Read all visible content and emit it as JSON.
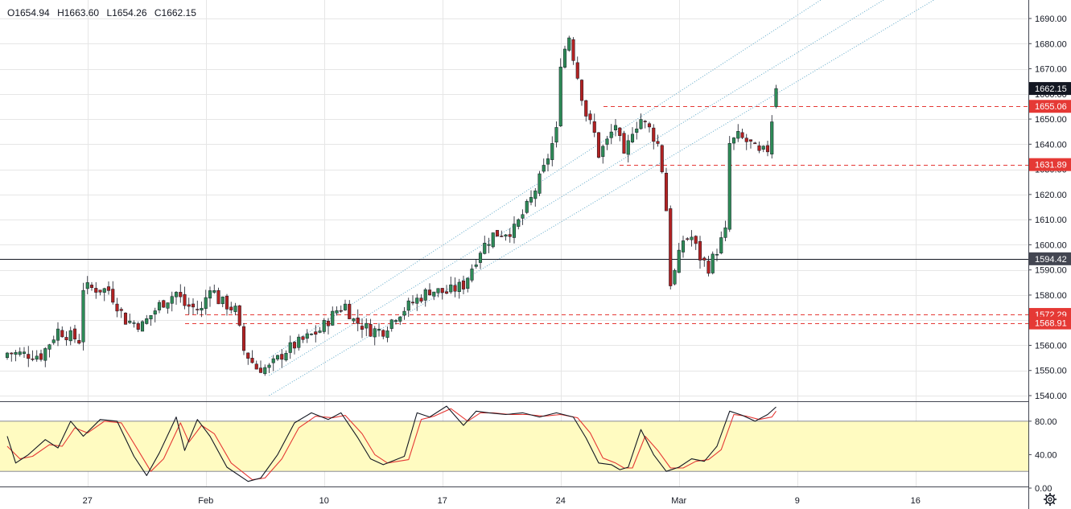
{
  "ohlc": {
    "open": "O1654.94",
    "high": "H1663.60",
    "low": "L1654.26",
    "close": "C1662.15"
  },
  "colors": {
    "up": "#26a69a",
    "up_fill": "#2e8b57",
    "down": "#ef5350",
    "down_fill": "#b22222",
    "level": "#e53935",
    "k_line": "#131722",
    "d_line": "#e53935",
    "band": "#fffbc1",
    "channel": "#5fa8c8",
    "grid": "#e6e6e6"
  },
  "chart_data": [
    {
      "type": "candlestick",
      "ylim": [
        1535,
        1695
      ],
      "yticks": [
        "1540.00",
        "1550.00",
        "1560.00",
        "1570.00",
        "1580.00",
        "1590.00",
        "1600.00",
        "1610.00",
        "1620.00",
        "1630.00",
        "1640.00",
        "1650.00",
        "1660.00",
        "1670.00",
        "1680.00",
        "1690.00"
      ],
      "xticks": [
        {
          "label": "27",
          "index": 19
        },
        {
          "label": "Feb",
          "index": 47
        },
        {
          "label": "10",
          "index": 75
        },
        {
          "label": "17",
          "index": 103
        },
        {
          "label": "24",
          "index": 131
        },
        {
          "label": "Mar",
          "index": 159
        },
        {
          "label": "9",
          "index": 187
        },
        {
          "label": "16",
          "index": 215
        }
      ],
      "price_levels": [
        {
          "label": "1662.15",
          "value": 1662.15,
          "style": "last",
          "color": "#131722"
        },
        {
          "label": "1655.06",
          "value": 1655.06,
          "style": "dashed",
          "color": "#e53935"
        },
        {
          "label": "1631.89",
          "value": 1631.89,
          "style": "dashed",
          "color": "#e53935"
        },
        {
          "label": "1594.42",
          "value": 1594.42,
          "style": "solid",
          "color": "#131722"
        },
        {
          "label": "1572.29",
          "value": 1572.29,
          "style": "dashed",
          "color": "#e53935"
        },
        {
          "label": "1568.91",
          "value": 1568.91,
          "style": "dashed",
          "color": "#e53935"
        }
      ],
      "channel_lines": [
        {
          "from": [
            62,
            1555
          ],
          "to": [
            195,
            1700
          ]
        },
        {
          "from": [
            62,
            1548
          ],
          "to": [
            210,
            1700
          ]
        },
        {
          "from": [
            62,
            1540
          ],
          "to": [
            222,
            1700
          ]
        }
      ],
      "close_path": [
        [
          0,
          1557
        ],
        [
          8,
          1556
        ],
        [
          12,
          1566
        ],
        [
          17,
          1562
        ],
        [
          18,
          1583
        ],
        [
          24,
          1582
        ],
        [
          28,
          1570
        ],
        [
          32,
          1568
        ],
        [
          36,
          1576
        ],
        [
          40,
          1581
        ],
        [
          42,
          1576
        ],
        [
          46,
          1574
        ],
        [
          48,
          1584
        ],
        [
          50,
          1578
        ],
        [
          54,
          1574
        ],
        [
          56,
          1558
        ],
        [
          59,
          1551
        ],
        [
          62,
          1551
        ],
        [
          66,
          1558
        ],
        [
          70,
          1562
        ],
        [
          74,
          1566
        ],
        [
          78,
          1574
        ],
        [
          80,
          1576
        ],
        [
          82,
          1570
        ],
        [
          86,
          1566
        ],
        [
          89,
          1566
        ],
        [
          92,
          1572
        ],
        [
          96,
          1577
        ],
        [
          100,
          1582
        ],
        [
          104,
          1581
        ],
        [
          108,
          1584
        ],
        [
          112,
          1598
        ],
        [
          115,
          1604
        ],
        [
          120,
          1606
        ],
        [
          124,
          1618
        ],
        [
          127,
          1630
        ],
        [
          130,
          1645
        ],
        [
          131,
          1673
        ],
        [
          133,
          1683
        ],
        [
          135,
          1667
        ],
        [
          137,
          1652
        ],
        [
          139,
          1644
        ],
        [
          140,
          1636
        ],
        [
          142,
          1641
        ],
        [
          144,
          1648
        ],
        [
          146,
          1634
        ],
        [
          148,
          1646
        ],
        [
          150,
          1650
        ],
        [
          152,
          1646
        ],
        [
          154,
          1640
        ],
        [
          155,
          1630
        ],
        [
          156,
          1614
        ],
        [
          157,
          1585
        ],
        [
          158,
          1589
        ],
        [
          160,
          1602
        ],
        [
          162,
          1603
        ],
        [
          164,
          1595
        ],
        [
          166,
          1591
        ],
        [
          168,
          1598
        ],
        [
          170,
          1605
        ],
        [
          171,
          1640
        ],
        [
          173,
          1643
        ],
        [
          176,
          1640
        ],
        [
          178,
          1636
        ],
        [
          180,
          1638
        ],
        [
          181,
          1650
        ],
        [
          182,
          1660
        ]
      ]
    },
    {
      "type": "line",
      "ylim": [
        0,
        100
      ],
      "yticks": [
        "0.00",
        "40.00",
        "80.00"
      ],
      "band": [
        20,
        80
      ],
      "series_k": [
        [
          0,
          62
        ],
        [
          2,
          30
        ],
        [
          5,
          40
        ],
        [
          9,
          58
        ],
        [
          12,
          48
        ],
        [
          15,
          80
        ],
        [
          18,
          62
        ],
        [
          22,
          82
        ],
        [
          26,
          80
        ],
        [
          30,
          38
        ],
        [
          33,
          15
        ],
        [
          36,
          42
        ],
        [
          40,
          85
        ],
        [
          42,
          45
        ],
        [
          45,
          82
        ],
        [
          48,
          62
        ],
        [
          52,
          25
        ],
        [
          57,
          8
        ],
        [
          60,
          12
        ],
        [
          64,
          40
        ],
        [
          68,
          78
        ],
        [
          72,
          90
        ],
        [
          76,
          82
        ],
        [
          79,
          90
        ],
        [
          83,
          60
        ],
        [
          86,
          35
        ],
        [
          89,
          28
        ],
        [
          94,
          38
        ],
        [
          97,
          90
        ],
        [
          100,
          85
        ],
        [
          104,
          98
        ],
        [
          108,
          75
        ],
        [
          111,
          92
        ],
        [
          114,
          90
        ],
        [
          118,
          88
        ],
        [
          122,
          90
        ],
        [
          126,
          85
        ],
        [
          130,
          90
        ],
        [
          134,
          85
        ],
        [
          137,
          60
        ],
        [
          140,
          30
        ],
        [
          143,
          28
        ],
        [
          145,
          22
        ],
        [
          147,
          25
        ],
        [
          150,
          70
        ],
        [
          153,
          40
        ],
        [
          156,
          20
        ],
        [
          159,
          25
        ],
        [
          162,
          35
        ],
        [
          165,
          32
        ],
        [
          168,
          50
        ],
        [
          171,
          92
        ],
        [
          174,
          87
        ],
        [
          177,
          80
        ],
        [
          180,
          88
        ],
        [
          182,
          97
        ]
      ],
      "series_d": [
        [
          0,
          50
        ],
        [
          3,
          35
        ],
        [
          6,
          38
        ],
        [
          10,
          52
        ],
        [
          13,
          50
        ],
        [
          16,
          72
        ],
        [
          19,
          66
        ],
        [
          23,
          80
        ],
        [
          27,
          78
        ],
        [
          31,
          45
        ],
        [
          34,
          20
        ],
        [
          37,
          35
        ],
        [
          41,
          78
        ],
        [
          43,
          55
        ],
        [
          46,
          75
        ],
        [
          49,
          65
        ],
        [
          53,
          30
        ],
        [
          58,
          10
        ],
        [
          61,
          12
        ],
        [
          65,
          35
        ],
        [
          69,
          72
        ],
        [
          73,
          86
        ],
        [
          77,
          84
        ],
        [
          80,
          87
        ],
        [
          84,
          65
        ],
        [
          87,
          40
        ],
        [
          90,
          30
        ],
        [
          95,
          34
        ],
        [
          98,
          82
        ],
        [
          101,
          86
        ],
        [
          105,
          95
        ],
        [
          109,
          80
        ],
        [
          112,
          90
        ],
        [
          115,
          90
        ],
        [
          119,
          88
        ],
        [
          123,
          88
        ],
        [
          127,
          86
        ],
        [
          131,
          88
        ],
        [
          135,
          84
        ],
        [
          138,
          66
        ],
        [
          141,
          36
        ],
        [
          144,
          30
        ],
        [
          146,
          24
        ],
        [
          148,
          24
        ],
        [
          151,
          62
        ],
        [
          154,
          45
        ],
        [
          157,
          24
        ],
        [
          160,
          24
        ],
        [
          163,
          32
        ],
        [
          166,
          34
        ],
        [
          169,
          46
        ],
        [
          172,
          88
        ],
        [
          175,
          86
        ],
        [
          178,
          82
        ],
        [
          181,
          85
        ],
        [
          182,
          92
        ]
      ]
    }
  ]
}
